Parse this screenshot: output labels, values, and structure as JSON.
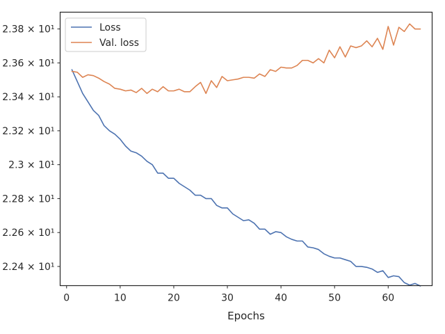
{
  "chart_data": {
    "type": "line",
    "title": "",
    "xlabel": "Epochs",
    "ylabel": "",
    "xlim": [
      -1.2,
      68.2
    ],
    "ylim": [
      22.287,
      23.899
    ],
    "x_ticks": [
      0,
      10,
      20,
      30,
      40,
      50,
      60
    ],
    "y_ticks": [
      {
        "value": 22.4,
        "label": "2.24 × 10¹"
      },
      {
        "value": 22.6,
        "label": "2.26 × 10¹"
      },
      {
        "value": 22.8,
        "label": "2.28 × 10¹"
      },
      {
        "value": 23.0,
        "label": "2.3 × 10¹"
      },
      {
        "value": 23.2,
        "label": "2.32 × 10¹"
      },
      {
        "value": 23.4,
        "label": "2.34 × 10¹"
      },
      {
        "value": 23.6,
        "label": "2.36 × 10¹"
      },
      {
        "value": 23.8,
        "label": "2.38 × 10¹"
      }
    ],
    "grid": false,
    "legend_position": "top-left",
    "x": [
      1,
      2,
      3,
      4,
      5,
      6,
      7,
      8,
      9,
      10,
      11,
      12,
      13,
      14,
      15,
      16,
      17,
      18,
      19,
      20,
      21,
      22,
      23,
      24,
      25,
      26,
      27,
      28,
      29,
      30,
      31,
      32,
      33,
      34,
      35,
      36,
      37,
      38,
      39,
      40,
      41,
      42,
      43,
      44,
      45,
      46,
      47,
      48,
      49,
      50,
      51,
      52,
      53,
      54,
      55,
      56,
      57,
      58,
      59,
      60,
      61,
      62,
      63,
      64,
      65,
      66
    ],
    "series": [
      {
        "name": "Loss",
        "color": "#4c72b0",
        "values": [
          23.56,
          23.49,
          23.42,
          23.37,
          23.32,
          23.29,
          23.23,
          23.2,
          23.18,
          23.15,
          23.11,
          23.08,
          23.07,
          23.05,
          23.02,
          23.0,
          22.95,
          22.95,
          22.92,
          22.92,
          22.89,
          22.87,
          22.85,
          22.82,
          22.82,
          22.8,
          22.8,
          22.76,
          22.745,
          22.745,
          22.71,
          22.69,
          22.67,
          22.675,
          22.655,
          22.62,
          22.62,
          22.59,
          22.605,
          22.6,
          22.575,
          22.56,
          22.55,
          22.55,
          22.515,
          22.51,
          22.5,
          22.475,
          22.46,
          22.45,
          22.45,
          22.44,
          22.43,
          22.4,
          22.4,
          22.395,
          22.385,
          22.365,
          22.375,
          22.335,
          22.345,
          22.34,
          22.305,
          22.29,
          22.3,
          22.285
        ]
      },
      {
        "name": "Val. loss",
        "color": "#dd8452",
        "values": [
          23.55,
          23.545,
          23.515,
          23.53,
          23.525,
          23.51,
          23.49,
          23.475,
          23.45,
          23.445,
          23.435,
          23.44,
          23.425,
          23.45,
          23.42,
          23.445,
          23.43,
          23.46,
          23.435,
          23.435,
          23.445,
          23.43,
          23.43,
          23.46,
          23.485,
          23.42,
          23.495,
          23.455,
          23.52,
          23.495,
          23.5,
          23.505,
          23.515,
          23.515,
          23.51,
          23.535,
          23.52,
          23.56,
          23.55,
          23.575,
          23.57,
          23.57,
          23.585,
          23.615,
          23.615,
          23.6,
          23.625,
          23.6,
          23.675,
          23.63,
          23.695,
          23.635,
          23.7,
          23.69,
          23.7,
          23.73,
          23.695,
          23.745,
          23.68,
          23.815,
          23.705,
          23.81,
          23.785,
          23.83,
          23.8,
          23.8
        ]
      }
    ]
  }
}
